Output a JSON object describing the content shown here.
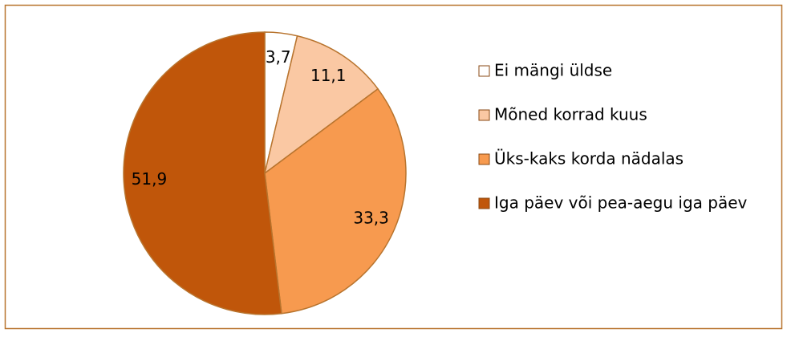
{
  "chart_data": {
    "type": "pie",
    "categories": [
      "Ei mängi üldse",
      "Mõned korrad kuus",
      "Üks-kaks korda nädalas",
      "Iga päev või pea-aegu iga päev"
    ],
    "values": [
      3.7,
      11.1,
      33.3,
      51.9
    ],
    "value_labels": [
      "3,7",
      "11,1",
      "33,3",
      "51,9"
    ],
    "colors": [
      "#ffffff",
      "#fac8a3",
      "#f79a4f",
      "#c0560a"
    ],
    "legend": "right"
  }
}
